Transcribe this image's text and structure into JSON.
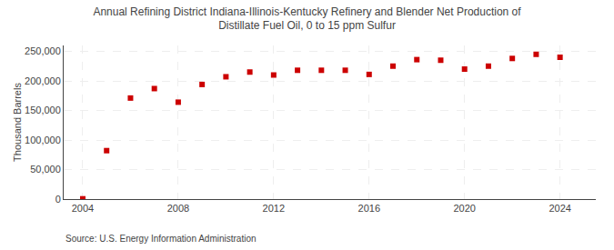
{
  "chart_data": {
    "type": "scatter",
    "title": "Annual Refining District Indiana-Illinois-Kentucky Refinery and Blender Net Production of\nDistillate Fuel Oil, 0 to 15 ppm Sulfur",
    "y_label": "Thousand Barrels",
    "annotations": [
      "Source: U.S. Energy Information Administration"
    ],
    "x": [
      2004,
      2005,
      2006,
      2007,
      2008,
      2009,
      2010,
      2011,
      2012,
      2013,
      2014,
      2015,
      2016,
      2017,
      2018,
      2019,
      2020,
      2021,
      2022,
      2023,
      2024
    ],
    "values": [
      500,
      82000,
      171000,
      187000,
      164000,
      194000,
      207000,
      215000,
      210000,
      218000,
      218000,
      218000,
      211000,
      225000,
      236000,
      235000,
      220000,
      225000,
      238000,
      245000,
      240000
    ],
    "color": "#cc0000",
    "marker": "square",
    "xlim": [
      2003.2,
      2025.5
    ],
    "xticks": [
      2004,
      2008,
      2012,
      2016,
      2020,
      2024
    ],
    "ylim": [
      0,
      260000
    ],
    "yticks": [
      0,
      {
        "value": 50000,
        "label": "50,000"
      },
      {
        "value": 100000,
        "label": "100,000"
      },
      {
        "value": 150000,
        "label": "150,000"
      },
      {
        "value": 200000,
        "label": "200,000"
      },
      {
        "value": 250000,
        "label": "250,000"
      }
    ],
    "grid": true
  }
}
